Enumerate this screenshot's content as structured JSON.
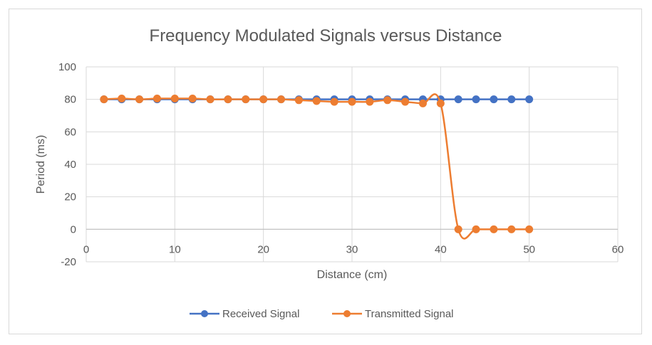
{
  "chart_data": {
    "type": "line",
    "title": "Frequency Modulated Signals versus Distance",
    "xlabel": "Distance (cm)",
    "ylabel": "Period (ms)",
    "xlim": [
      0,
      60
    ],
    "ylim": [
      -20,
      100
    ],
    "x_ticks": [
      0,
      10,
      20,
      30,
      40,
      50,
      60
    ],
    "y_ticks": [
      -20,
      0,
      20,
      40,
      60,
      80,
      100
    ],
    "grid": true,
    "smooth": true,
    "legend_position": "bottom",
    "series": [
      {
        "name": "Received Signal",
        "color": "#4472C4",
        "x": [
          2,
          4,
          6,
          8,
          10,
          12,
          14,
          16,
          18,
          20,
          22,
          24,
          26,
          28,
          30,
          32,
          34,
          36,
          38,
          40,
          42,
          44,
          46,
          48,
          50
        ],
        "y": [
          80,
          80,
          80,
          80,
          80,
          80,
          80,
          80,
          80,
          80,
          80,
          80,
          80,
          80,
          80,
          80,
          80,
          80,
          80,
          80,
          80,
          80,
          80,
          80,
          80
        ]
      },
      {
        "name": "Transmitted Signal",
        "color": "#ED7D31",
        "x": [
          2,
          4,
          6,
          8,
          10,
          12,
          14,
          16,
          18,
          20,
          22,
          24,
          26,
          28,
          30,
          32,
          34,
          36,
          38,
          40,
          42,
          44,
          46,
          48,
          50
        ],
        "y": [
          80,
          80.5,
          80,
          80.5,
          80.5,
          80.5,
          80,
          80,
          80,
          80,
          80,
          79.5,
          79,
          78.5,
          78.5,
          78.5,
          79.5,
          78.5,
          77.5,
          77.5,
          0,
          0,
          0,
          0,
          0
        ]
      }
    ]
  }
}
